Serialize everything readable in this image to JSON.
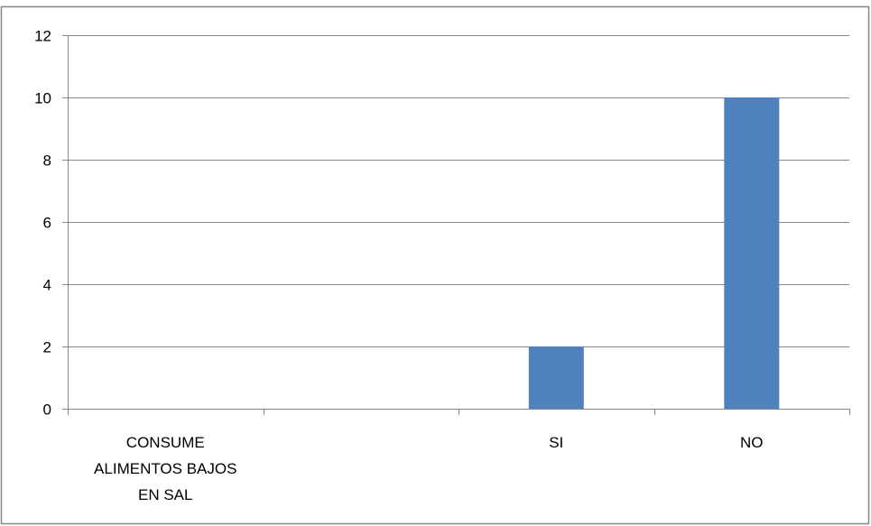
{
  "chart_data": {
    "type": "bar",
    "categories": [
      "CONSUME ALIMENTOS BAJOS EN SAL",
      "",
      "SI",
      "NO"
    ],
    "category_label_lines": [
      [
        "CONSUME",
        "ALIMENTOS BAJOS",
        "EN SAL"
      ],
      [],
      [
        "SI"
      ],
      [
        "NO"
      ]
    ],
    "values": [
      null,
      null,
      2,
      10
    ],
    "ylim": [
      0,
      12
    ],
    "yticks": [
      0,
      2,
      4,
      6,
      8,
      10,
      12
    ],
    "grid": true,
    "legend": "none",
    "bar_color": "#4F81BD",
    "gridline_color": "#868686",
    "frame_color": "#868686"
  }
}
